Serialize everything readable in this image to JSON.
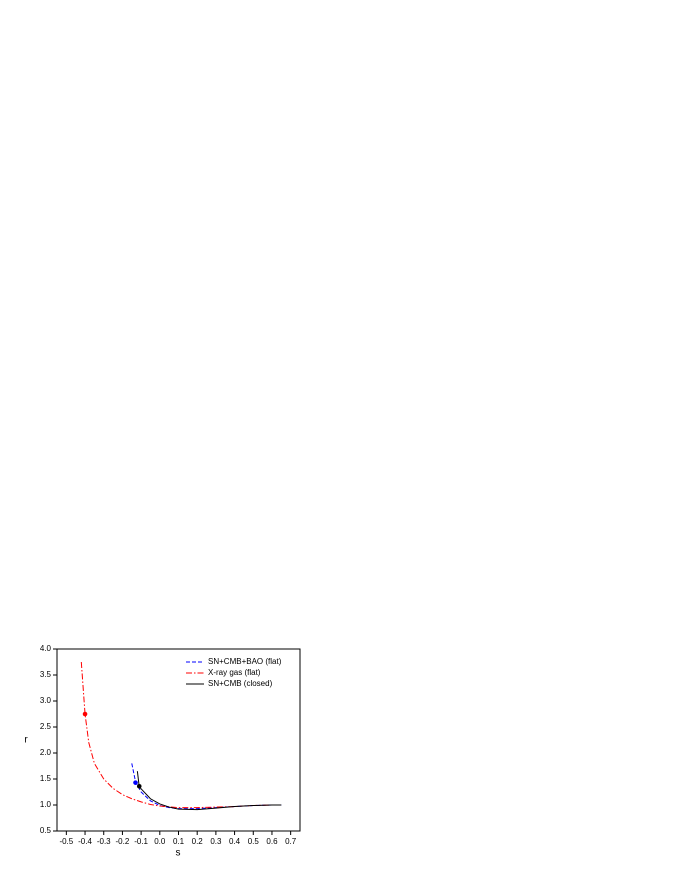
{
  "chart_data": {
    "type": "line",
    "x_label": "s",
    "y_label": "r",
    "xlim": [
      -0.55,
      0.75
    ],
    "xticks": [
      -0.5,
      -0.4,
      -0.3,
      -0.2,
      -0.1,
      {
        "value": 0,
        "label": "0.0"
      },
      0.1,
      0.2,
      0.3,
      0.4,
      0.5,
      0.6,
      0.7
    ],
    "ylim": [
      0.5,
      4.0
    ],
    "yticks": [
      0.5,
      {
        "value": 1,
        "label": "1.0"
      },
      1.5,
      {
        "value": 2,
        "label": "2.0"
      },
      2.5,
      {
        "value": 3,
        "label": "3.0"
      },
      3.5,
      {
        "value": 4,
        "label": "4.0"
      }
    ],
    "legend": "top-right",
    "series": [
      {
        "name": "SN+CMB+BAO (flat)",
        "color": "#0000ff",
        "style": "dashed",
        "x": [
          -0.15,
          -0.13,
          -0.1,
          -0.05,
          0,
          0.05,
          0.1,
          0.2,
          0.3,
          0.4,
          0.5,
          0.6,
          0.65
        ],
        "values": [
          1.8,
          1.45,
          1.25,
          1.08,
          0.99,
          0.95,
          0.93,
          0.93,
          0.95,
          0.97,
          0.99,
          1.0,
          1.0
        ],
        "point": {
          "x": -0.13,
          "y": 1.43
        }
      },
      {
        "name": "X-ray gas (flat)",
        "color": "#ff0000",
        "style": "dashdot",
        "x": [
          -0.42,
          -0.4,
          -0.38,
          -0.35,
          -0.3,
          -0.25,
          -0.2,
          -0.15,
          -0.1,
          -0.05,
          0,
          0.1,
          0.2,
          0.3,
          0.4,
          0.5,
          0.6,
          0.65
        ],
        "values": [
          3.75,
          2.75,
          2.2,
          1.8,
          1.5,
          1.32,
          1.2,
          1.12,
          1.06,
          1.01,
          0.98,
          0.95,
          0.95,
          0.96,
          0.97,
          0.99,
          1.0,
          1.0
        ],
        "point": {
          "x": -0.4,
          "y": 2.75
        }
      },
      {
        "name": "SN+CMB (closed)",
        "color": "#000000",
        "style": "solid",
        "x": [
          -0.12,
          -0.11,
          -0.05,
          0,
          0.05,
          0.1,
          0.2,
          0.3,
          0.4,
          0.5,
          0.6,
          0.65
        ],
        "values": [
          1.65,
          1.35,
          1.12,
          1.02,
          0.96,
          0.92,
          0.91,
          0.94,
          0.97,
          0.99,
          1.0,
          1.0
        ],
        "point": {
          "x": -0.11,
          "y": 1.36
        }
      }
    ]
  }
}
